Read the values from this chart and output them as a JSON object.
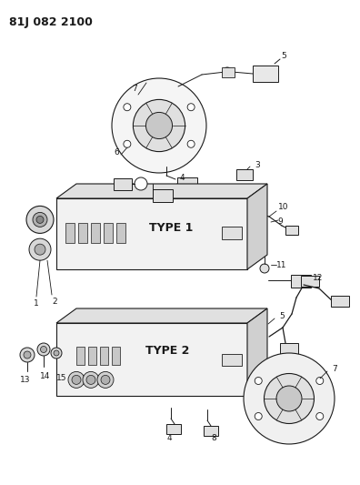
{
  "title": "81J 082 2100",
  "bg_color": "#ffffff",
  "fg_color": "#000000",
  "title_fontsize": 9,
  "type1_label": "TYPE 1",
  "type2_label": "TYPE 2",
  "fig_w": 3.96,
  "fig_h": 5.33,
  "dpi": 100,
  "line_color": "#1a1a1a",
  "fill_light": "#e0e0e0",
  "fill_mid": "#c0c0c0",
  "fill_dark": "#888888"
}
